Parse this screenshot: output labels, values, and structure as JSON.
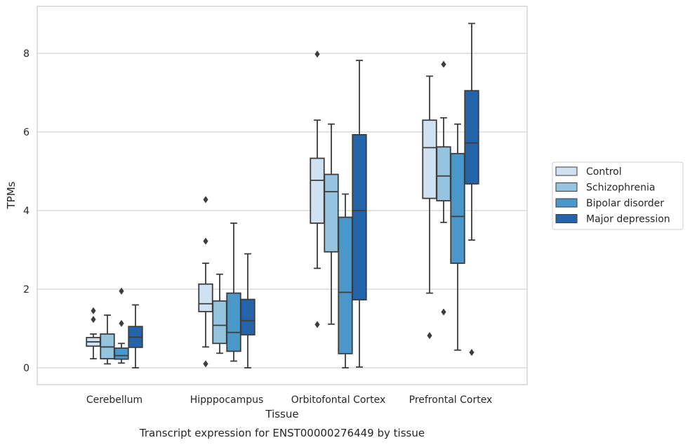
{
  "chart_data": {
    "type": "boxplot",
    "title": "",
    "caption": "Transcript expression for ENST00000276449 by tissue",
    "xlabel": "Tissue",
    "ylabel": "TPMs",
    "ylim": [
      -0.42,
      9.2
    ],
    "yticks": [
      0,
      2,
      4,
      6,
      8
    ],
    "grid": "horizontal",
    "legend_position": "right",
    "categories": [
      "Cerebellum",
      "Hipppocampus",
      "Orbitofontal Cortex",
      "Prefrontal Cortex"
    ],
    "series": [
      {
        "name": "Control",
        "color": "#d0e1f2",
        "boxes": [
          {
            "whislo": 0.23,
            "q1": 0.55,
            "med": 0.66,
            "q3": 0.77,
            "whishi": 0.86,
            "fliers": [
              1.23,
              1.45
            ]
          },
          {
            "whislo": 0.53,
            "q1": 1.43,
            "med": 1.63,
            "q3": 2.13,
            "whishi": 2.66,
            "fliers": [
              0.1,
              3.22,
              4.28
            ]
          },
          {
            "whislo": 2.53,
            "q1": 3.68,
            "med": 4.77,
            "q3": 5.33,
            "whishi": 6.3,
            "fliers": [
              1.1,
              7.98
            ]
          },
          {
            "whislo": 1.9,
            "q1": 4.31,
            "med": 5.6,
            "q3": 6.3,
            "whishi": 7.42,
            "fliers": [
              0.82
            ]
          }
        ]
      },
      {
        "name": "Schizophrenia",
        "color": "#94c4df",
        "boxes": [
          {
            "whislo": 0.1,
            "q1": 0.23,
            "med": 0.53,
            "q3": 0.86,
            "whishi": 1.34,
            "fliers": []
          },
          {
            "whislo": 0.37,
            "q1": 0.62,
            "med": 1.08,
            "q3": 1.7,
            "whishi": 2.38,
            "fliers": []
          },
          {
            "whislo": 1.11,
            "q1": 2.95,
            "med": 4.48,
            "q3": 4.92,
            "whishi": 6.2,
            "fliers": []
          },
          {
            "whislo": 3.7,
            "q1": 4.25,
            "med": 4.88,
            "q3": 5.62,
            "whishi": 6.36,
            "fliers": [
              1.42,
              7.72
            ]
          }
        ]
      },
      {
        "name": "Bipolar disorder",
        "color": "#4a98c9",
        "boxes": [
          {
            "whislo": 0.12,
            "q1": 0.22,
            "med": 0.31,
            "q3": 0.5,
            "whishi": 0.62,
            "fliers": [
              1.13,
              1.95
            ]
          },
          {
            "whislo": 0.17,
            "q1": 0.42,
            "med": 0.9,
            "q3": 1.9,
            "whishi": 3.68,
            "fliers": []
          },
          {
            "whislo": 0.0,
            "q1": 0.36,
            "med": 1.92,
            "q3": 3.83,
            "whishi": 4.42,
            "fliers": []
          },
          {
            "whislo": 0.45,
            "q1": 2.66,
            "med": 3.85,
            "q3": 5.45,
            "whishi": 6.2,
            "fliers": []
          }
        ]
      },
      {
        "name": "Major depression",
        "color": "#2464ab",
        "boxes": [
          {
            "whislo": 0.0,
            "q1": 0.52,
            "med": 0.78,
            "q3": 1.05,
            "whishi": 1.6,
            "fliers": []
          },
          {
            "whislo": 0.0,
            "q1": 0.84,
            "med": 1.2,
            "q3": 1.74,
            "whishi": 2.9,
            "fliers": []
          },
          {
            "whislo": 0.02,
            "q1": 1.73,
            "med": 4.0,
            "q3": 5.93,
            "whishi": 7.82,
            "fliers": []
          },
          {
            "whislo": 3.25,
            "q1": 4.68,
            "med": 5.72,
            "q3": 7.05,
            "whishi": 8.76,
            "fliers": [
              0.39
            ]
          }
        ]
      }
    ]
  }
}
